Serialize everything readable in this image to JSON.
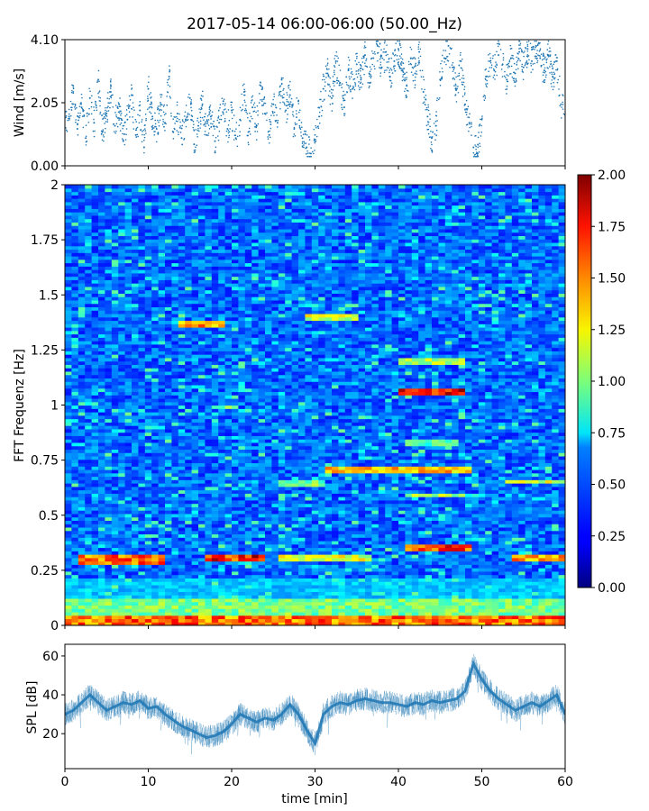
{
  "chart_data": [
    {
      "type": "scatter",
      "title": "2017-05-14 06:00-06:00 (50.00_Hz)",
      "xlabel": "",
      "ylabel": "Wind [m/s]",
      "xlim": [
        0,
        60
      ],
      "ylim": [
        0,
        4.1
      ],
      "yticks": [
        "0.00",
        "2.05",
        "4.10"
      ],
      "color": "#1f77b4",
      "points": [
        [
          0.5,
          1.6
        ],
        [
          1.0,
          2.6
        ],
        [
          1.5,
          1.2
        ],
        [
          2.0,
          1.9
        ],
        [
          2.5,
          0.9
        ],
        [
          3.0,
          2.2
        ],
        [
          3.5,
          1.4
        ],
        [
          4.0,
          2.8
        ],
        [
          4.5,
          1.1
        ],
        [
          5.0,
          1.7
        ],
        [
          5.5,
          2.4
        ],
        [
          6.0,
          1.3
        ],
        [
          6.5,
          2.0
        ],
        [
          7.0,
          0.8
        ],
        [
          7.5,
          1.5
        ],
        [
          8.0,
          2.3
        ],
        [
          8.5,
          1.0
        ],
        [
          9.0,
          1.8
        ],
        [
          9.5,
          0.6
        ],
        [
          10.0,
          2.5
        ],
        [
          10.5,
          1.6
        ],
        [
          11.0,
          1.2
        ],
        [
          11.5,
          2.0
        ],
        [
          12.0,
          1.4
        ],
        [
          12.5,
          2.9
        ],
        [
          13.0,
          1.1
        ],
        [
          13.5,
          1.7
        ],
        [
          14.0,
          0.9
        ],
        [
          14.5,
          1.5
        ],
        [
          15.0,
          2.2
        ],
        [
          15.5,
          0.7
        ],
        [
          16.0,
          1.3
        ],
        [
          16.5,
          2.0
        ],
        [
          17.0,
          1.0
        ],
        [
          17.5,
          1.6
        ],
        [
          18.0,
          0.8
        ],
        [
          18.5,
          1.4
        ],
        [
          19.0,
          2.1
        ],
        [
          19.5,
          1.2
        ],
        [
          20.0,
          1.8
        ],
        [
          20.5,
          0.9
        ],
        [
          21.0,
          1.5
        ],
        [
          21.5,
          2.4
        ],
        [
          22.0,
          1.1
        ],
        [
          22.5,
          1.9
        ],
        [
          23.0,
          1.3
        ],
        [
          23.5,
          2.6
        ],
        [
          24.0,
          1.7
        ],
        [
          24.5,
          1.0
        ],
        [
          25.0,
          2.0
        ],
        [
          25.5,
          1.4
        ],
        [
          26.0,
          2.8
        ],
        [
          26.5,
          1.8
        ],
        [
          27.0,
          2.3
        ],
        [
          27.5,
          1.2
        ],
        [
          28.0,
          2.1
        ],
        [
          28.5,
          0.9
        ],
        [
          29.0,
          0.6
        ],
        [
          29.5,
          0.4
        ],
        [
          30.0,
          0.8
        ],
        [
          30.5,
          1.6
        ],
        [
          31.0,
          2.5
        ],
        [
          31.5,
          3.0
        ],
        [
          32.0,
          2.2
        ],
        [
          32.5,
          3.4
        ],
        [
          33.0,
          2.7
        ],
        [
          33.5,
          1.9
        ],
        [
          34.0,
          3.1
        ],
        [
          34.5,
          2.5
        ],
        [
          35.0,
          3.3
        ],
        [
          35.5,
          2.8
        ],
        [
          36.0,
          3.6
        ],
        [
          36.5,
          3.0
        ],
        [
          37.0,
          3.5
        ],
        [
          37.5,
          3.9
        ],
        [
          38.0,
          3.2
        ],
        [
          38.5,
          3.7
        ],
        [
          39.0,
          2.9
        ],
        [
          39.5,
          3.4
        ],
        [
          40.0,
          3.8
        ],
        [
          40.5,
          3.1
        ],
        [
          41.0,
          2.6
        ],
        [
          41.5,
          3.5
        ],
        [
          42.0,
          3.0
        ],
        [
          42.5,
          3.7
        ],
        [
          43.0,
          2.4
        ],
        [
          43.5,
          1.6
        ],
        [
          44.0,
          0.9
        ],
        [
          44.5,
          1.3
        ],
        [
          45.0,
          2.8
        ],
        [
          45.5,
          3.5
        ],
        [
          46.0,
          3.9
        ],
        [
          46.5,
          3.2
        ],
        [
          47.0,
          2.5
        ],
        [
          47.5,
          3.4
        ],
        [
          48.0,
          2.0
        ],
        [
          48.5,
          1.4
        ],
        [
          49.0,
          0.6
        ],
        [
          49.5,
          0.4
        ],
        [
          50.0,
          1.5
        ],
        [
          50.5,
          2.9
        ],
        [
          51.0,
          3.4
        ],
        [
          51.5,
          3.1
        ],
        [
          52.0,
          3.6
        ],
        [
          52.5,
          3.3
        ],
        [
          53.0,
          2.8
        ],
        [
          53.5,
          3.5
        ],
        [
          54.0,
          3.0
        ],
        [
          54.5,
          3.7
        ],
        [
          55.0,
          3.2
        ],
        [
          55.5,
          3.8
        ],
        [
          56.0,
          3.4
        ],
        [
          56.5,
          3.9
        ],
        [
          57.0,
          3.5
        ],
        [
          57.5,
          3.1
        ],
        [
          58.0,
          3.6
        ],
        [
          58.5,
          2.9
        ],
        [
          59.0,
          3.4
        ],
        [
          59.5,
          2.0
        ]
      ]
    },
    {
      "type": "heatmap",
      "xlabel": "",
      "ylabel": "FFT Frequenz [Hz]",
      "xlim": [
        0,
        60
      ],
      "ylim": [
        0,
        2
      ],
      "yticks": [
        "0",
        "0.25",
        "0.5",
        "0.75",
        "1",
        "1.25",
        "1.5",
        "1.75",
        "2"
      ],
      "colormap": "jet",
      "colorbar": {
        "range": [
          0,
          2
        ],
        "ticks": [
          "0.00",
          "0.25",
          "0.50",
          "0.75",
          "1.00",
          "1.25",
          "1.50",
          "1.75",
          "2.00"
        ]
      },
      "bands": [
        {
          "f0": 0.0,
          "f1": 0.04,
          "t0": 0,
          "t1": 60,
          "value": 1.7
        },
        {
          "f0": 0.04,
          "f1": 0.12,
          "t0": 0,
          "t1": 60,
          "value": 1.1
        },
        {
          "f0": 0.12,
          "f1": 0.22,
          "t0": 0,
          "t1": 60,
          "value": 0.7
        },
        {
          "f0": 0.28,
          "f1": 0.32,
          "t0": 2,
          "t1": 12,
          "value": 1.7
        },
        {
          "f0": 0.3,
          "f1": 0.33,
          "t0": 17,
          "t1": 24,
          "value": 1.9
        },
        {
          "f0": 0.3,
          "f1": 0.33,
          "t0": 26,
          "t1": 37,
          "value": 1.3
        },
        {
          "f0": 0.34,
          "f1": 0.37,
          "t0": 41,
          "t1": 49,
          "value": 1.8
        },
        {
          "f0": 0.29,
          "f1": 0.32,
          "t0": 54,
          "t1": 60,
          "value": 1.6
        },
        {
          "f0": 0.58,
          "f1": 0.6,
          "t0": 41,
          "t1": 48,
          "value": 1.2
        },
        {
          "f0": 0.7,
          "f1": 0.72,
          "t0": 31,
          "t1": 49,
          "value": 1.5
        },
        {
          "f0": 0.63,
          "f1": 0.66,
          "t0": 26,
          "t1": 31,
          "value": 1.1
        },
        {
          "f0": 0.64,
          "f1": 0.66,
          "t0": 53,
          "t1": 60,
          "value": 1.3
        },
        {
          "f0": 0.82,
          "f1": 0.84,
          "t0": 41,
          "t1": 47,
          "value": 1.0
        },
        {
          "f0": 1.05,
          "f1": 1.08,
          "t0": 40,
          "t1": 48,
          "value": 1.9
        },
        {
          "f0": 0.98,
          "f1": 1.0,
          "t0": 18,
          "t1": 21,
          "value": 1.1
        },
        {
          "f0": 1.36,
          "f1": 1.38,
          "t0": 14,
          "t1": 19,
          "value": 1.6
        },
        {
          "f0": 1.39,
          "f1": 1.41,
          "t0": 29,
          "t1": 35,
          "value": 1.3
        },
        {
          "f0": 1.19,
          "f1": 1.21,
          "t0": 40,
          "t1": 48,
          "value": 1.2
        }
      ]
    },
    {
      "type": "line",
      "xlabel": "time [min]",
      "ylabel": "SPL [dB]",
      "xlim": [
        0,
        60
      ],
      "ylim": [
        2,
        66
      ],
      "xticks": [
        "0",
        "10",
        "20",
        "30",
        "40",
        "50",
        "60"
      ],
      "yticks": [
        "20",
        "40",
        "60"
      ],
      "color": "#1f77b4",
      "x": [
        0,
        1,
        2,
        3,
        4,
        5,
        6,
        7,
        8,
        9,
        10,
        11,
        12,
        13,
        14,
        15,
        16,
        17,
        18,
        19,
        20,
        21,
        22,
        23,
        24,
        25,
        26,
        27,
        28,
        29,
        30,
        31,
        32,
        33,
        34,
        35,
        36,
        37,
        38,
        39,
        40,
        41,
        42,
        43,
        44,
        45,
        46,
        47,
        48,
        49,
        50,
        51,
        52,
        53,
        54,
        55,
        56,
        57,
        58,
        59,
        60
      ],
      "y": [
        30,
        32,
        36,
        40,
        36,
        32,
        34,
        36,
        35,
        37,
        33,
        34,
        30,
        27,
        24,
        22,
        20,
        18,
        19,
        21,
        25,
        30,
        28,
        26,
        28,
        27,
        30,
        35,
        30,
        22,
        15,
        30,
        34,
        36,
        35,
        37,
        38,
        37,
        36,
        36,
        35,
        34,
        36,
        35,
        37,
        36,
        37,
        38,
        42,
        56,
        48,
        42,
        38,
        35,
        32,
        34,
        36,
        34,
        37,
        40,
        30
      ]
    }
  ]
}
